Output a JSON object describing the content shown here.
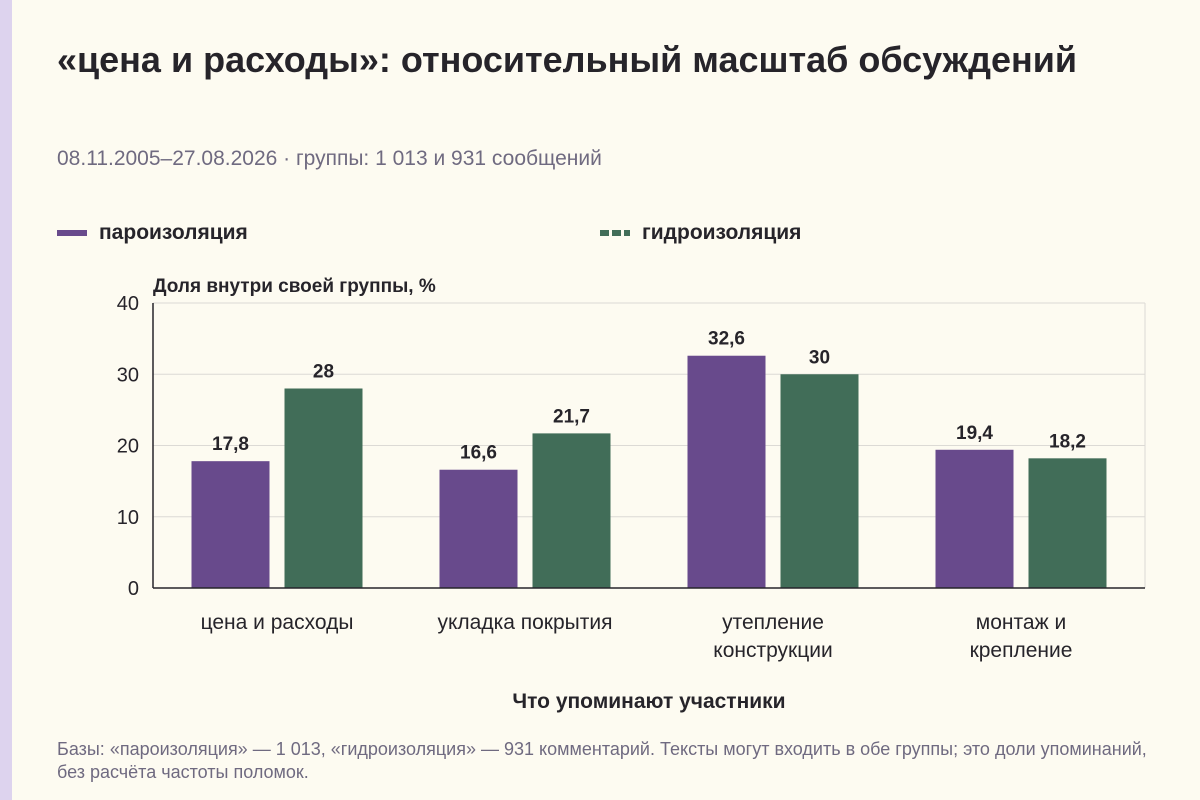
{
  "header": {
    "title": "«цена и расходы»: относительный масштаб обсуждений",
    "subtitle": "08.11.2005–27.08.2026 · группы: 1 013 и 931 сообщений"
  },
  "colors": {
    "series_1": "#684a8c",
    "series_2": "#416d58",
    "grid": "#dcdad5",
    "axis": "#26242a"
  },
  "chart_data": {
    "type": "bar",
    "categories": [
      [
        "цена и расходы"
      ],
      [
        "укладка покрытия"
      ],
      [
        "утепление",
        "конструкции"
      ],
      [
        "монтаж и",
        "крепление"
      ]
    ],
    "series": [
      {
        "name": "пароизоляция",
        "values": [
          17.8,
          16.6,
          32.6,
          19.4
        ],
        "labels": [
          "17,8",
          "16,6",
          "32,6",
          "19,4"
        ],
        "color": "#684a8c"
      },
      {
        "name": "гидроизоляция",
        "values": [
          28,
          21.7,
          30,
          18.2
        ],
        "labels": [
          "28",
          "21,7",
          "30",
          "18,2"
        ],
        "color": "#416d58"
      }
    ],
    "ylabel": "Доля внутри своей группы, %",
    "xlabel": "Что упоминают участники",
    "ylim": [
      0,
      40
    ],
    "yticks": [
      0,
      10,
      20,
      30,
      40
    ],
    "legend": "top-left",
    "grid": true
  },
  "footnote": "Базы: «пароизоляция» — 1 013, «гидроизоляция» — 931 комментарий. Тексты могут входить в обе группы; это доли упоминаний, без расчёта частоты поломок."
}
